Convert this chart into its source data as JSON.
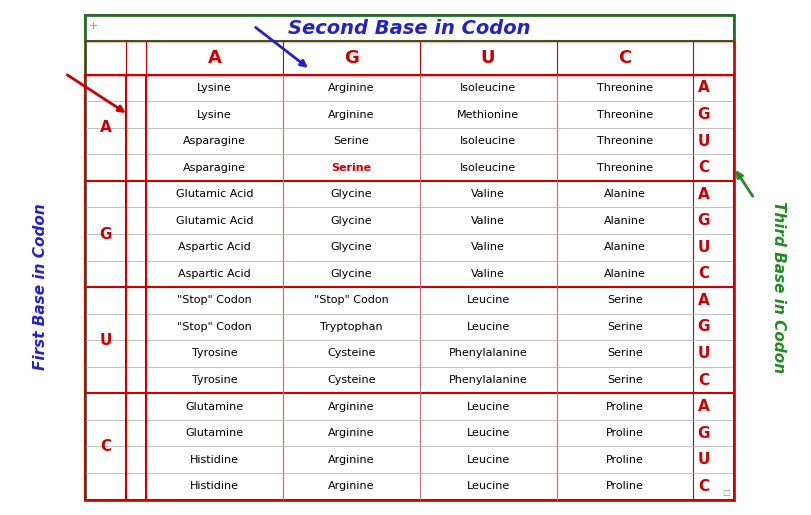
{
  "title": "Second Base in Codon",
  "left_label": "First Base in Codon",
  "right_label": "Third Base in Codon",
  "col_headers": [
    "A",
    "G",
    "U",
    "C"
  ],
  "first_bases": [
    "A",
    "G",
    "U",
    "C"
  ],
  "third_bases": [
    "A",
    "G",
    "U",
    "C"
  ],
  "rows": [
    [
      "Lysine",
      "Arginine",
      "Isoleucine",
      "Threonine"
    ],
    [
      "Lysine",
      "Arginine",
      "Methionine",
      "Threonine"
    ],
    [
      "Asparagine",
      "Serine",
      "Isoleucine",
      "Threonine"
    ],
    [
      "Asparagine",
      "Serine",
      "Isoleucine",
      "Threonine"
    ],
    [
      "Glutamic Acid",
      "Glycine",
      "Valine",
      "Alanine"
    ],
    [
      "Glutamic Acid",
      "Glycine",
      "Valine",
      "Alanine"
    ],
    [
      "Aspartic Acid",
      "Glycine",
      "Valine",
      "Alanine"
    ],
    [
      "Aspartic Acid",
      "Glycine",
      "Valine",
      "Alanine"
    ],
    [
      "\"Stop\" Codon",
      "\"Stop\" Codon",
      "Leucine",
      "Serine"
    ],
    [
      "\"Stop\" Codon",
      "Tryptophan",
      "Leucine",
      "Serine"
    ],
    [
      "Tyrosine",
      "Cysteine",
      "Phenylalanine",
      "Serine"
    ],
    [
      "Tyrosine",
      "Cysteine",
      "Phenylalanine",
      "Serine"
    ],
    [
      "Glutamine",
      "Arginine",
      "Leucine",
      "Proline"
    ],
    [
      "Glutamine",
      "Arginine",
      "Leucine",
      "Proline"
    ],
    [
      "Histidine",
      "Arginine",
      "Leucine",
      "Proline"
    ],
    [
      "Histidine",
      "Arginine",
      "Leucine",
      "Proline"
    ]
  ],
  "highlight_cell": [
    3,
    1
  ],
  "header_color": "#cc0000",
  "cell_text_color": "#000000",
  "third_base_color": "#cc0000",
  "first_base_color": "#cc0000",
  "title_color": "#2222cc",
  "left_label_color": "#2222cc",
  "right_label_color": "#228B22",
  "border_color": "#2d6a2d",
  "red_arrow_color": "#cc0000",
  "blue_arrow_color": "#2222cc",
  "green_arrow_color": "#228B22",
  "highlight_color": "#cc0000",
  "background_color": "#ffffff"
}
